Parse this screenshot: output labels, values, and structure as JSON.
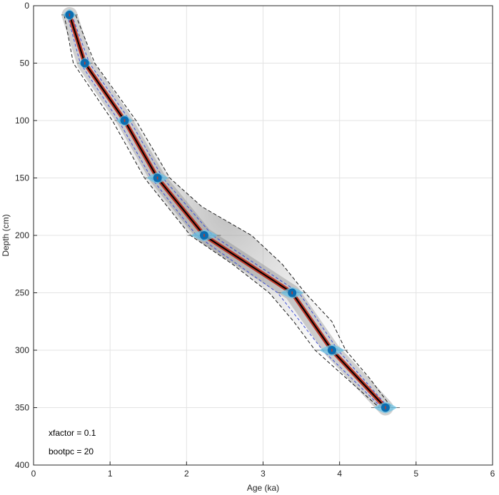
{
  "chart_data": {
    "type": "line",
    "title": "",
    "xlabel": "Age (ka)",
    "ylabel": "Depth (cm)",
    "xlim": [
      0,
      6
    ],
    "ylim": [
      0,
      400
    ],
    "y_reversed": true,
    "xticks": [
      0,
      1,
      2,
      3,
      4,
      5,
      6
    ],
    "yticks": [
      0,
      50,
      100,
      150,
      200,
      250,
      300,
      350,
      400
    ],
    "grid": true,
    "annotations": [
      "xfactor = 0.1",
      "bootpc = 20"
    ],
    "colors": {
      "median": "#000000",
      "inner_band": "#c0392b",
      "ci_inner": "#3f4fd6",
      "ci_outer": "#1a1a1a",
      "date_marker": "#0b6db0",
      "date_pdf": "#6cc3e6",
      "envelope": "#9a9a9a",
      "grid": "#e3e3e3"
    },
    "series": [
      {
        "role": "median",
        "depth": [
          8,
          50,
          100,
          150,
          200,
          250,
          300,
          350
        ],
        "age": [
          0.47,
          0.67,
          1.19,
          1.62,
          2.23,
          3.38,
          3.9,
          4.6
        ]
      },
      {
        "role": "ci-inner-low",
        "depth": [
          8,
          50,
          100,
          150,
          200,
          250,
          300,
          350
        ],
        "age": [
          0.44,
          0.61,
          1.11,
          1.54,
          2.13,
          3.19,
          3.78,
          4.55
        ]
      },
      {
        "role": "ci-inner-high",
        "depth": [
          8,
          50,
          100,
          150,
          200,
          250,
          300,
          350
        ],
        "age": [
          0.5,
          0.73,
          1.26,
          1.69,
          2.34,
          3.47,
          3.98,
          4.64
        ]
      },
      {
        "role": "ci-outer-low",
        "depth": [
          8,
          50,
          100,
          150,
          200,
          225,
          250,
          275,
          300,
          325,
          350
        ],
        "age": [
          0.4,
          0.52,
          1.03,
          1.45,
          2.05,
          2.6,
          3.08,
          3.4,
          3.68,
          4.1,
          4.52
        ]
      },
      {
        "role": "ci-outer-high",
        "depth": [
          8,
          50,
          100,
          150,
          175,
          200,
          225,
          250,
          275,
          300,
          325,
          350
        ],
        "age": [
          0.55,
          0.8,
          1.34,
          1.78,
          2.2,
          2.85,
          3.25,
          3.55,
          3.9,
          4.08,
          4.4,
          4.68
        ]
      }
    ],
    "dates": [
      {
        "depth": 8,
        "age": 0.47,
        "age_spread": 0.17
      },
      {
        "depth": 50,
        "age": 0.67,
        "age_spread": 0.16
      },
      {
        "depth": 100,
        "age": 1.19,
        "age_spread": 0.21
      },
      {
        "depth": 150,
        "age": 1.62,
        "age_spread": 0.28
      },
      {
        "depth": 200,
        "age": 2.23,
        "age_spread": 0.35
      },
      {
        "depth": 250,
        "age": 3.38,
        "age_spread": 0.3
      },
      {
        "depth": 300,
        "age": 3.9,
        "age_spread": 0.33
      },
      {
        "depth": 350,
        "age": 4.6,
        "age_spread": 0.3
      }
    ]
  }
}
